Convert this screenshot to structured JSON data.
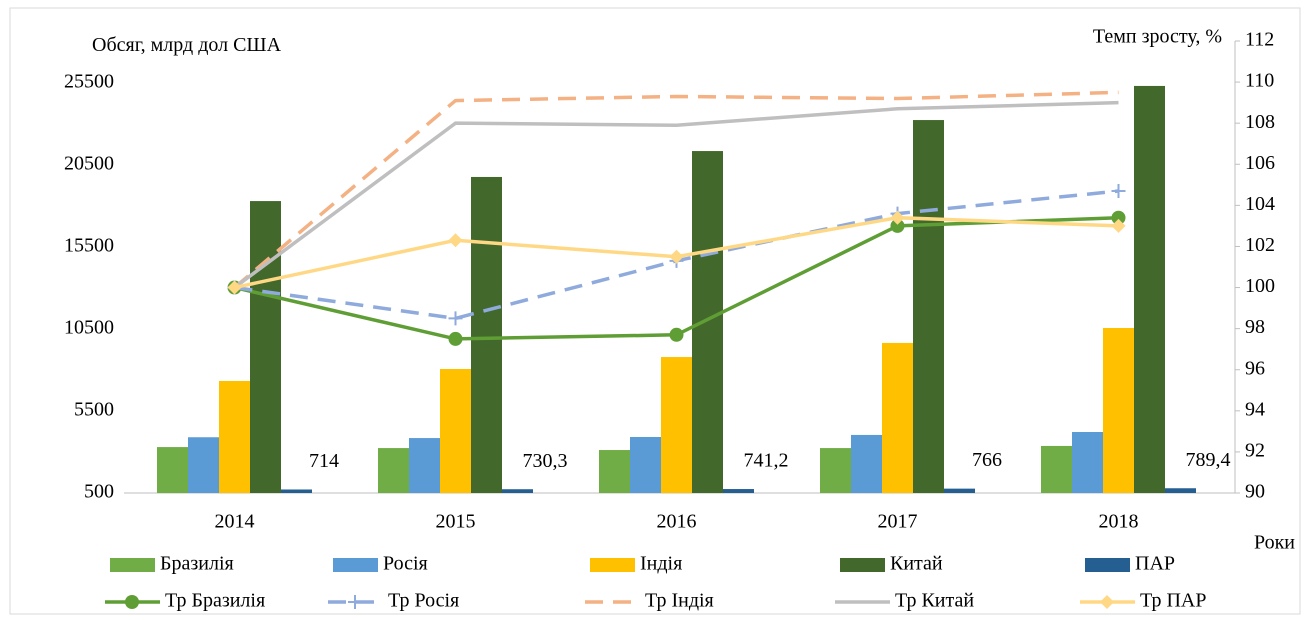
{
  "chart_data": {
    "type": "bar",
    "y_label": "Обсяг, млрд дол США",
    "y2_label": "Темп зросту, %",
    "x_label": "Роки",
    "categories": [
      "2014",
      "2015",
      "2016",
      "2017",
      "2018"
    ],
    "ylim": [
      500,
      28060
    ],
    "yticks": [
      500,
      5500,
      10500,
      15500,
      20500,
      25500
    ],
    "y2lim": [
      90,
      112
    ],
    "y2ticks": [
      90,
      92,
      94,
      96,
      98,
      100,
      102,
      104,
      106,
      108,
      110,
      112
    ],
    "series": [
      {
        "name": "Бразилія",
        "color": "#70ad47",
        "values": [
          3300,
          3240,
          3120,
          3240,
          3370
        ]
      },
      {
        "name": "Росія",
        "color": "#5b9bd5",
        "values": [
          3900,
          3850,
          3915,
          4040,
          4220
        ]
      },
      {
        "name": "Індія",
        "color": "#ffc000",
        "values": [
          7330,
          8060,
          8790,
          9650,
          10560
        ]
      },
      {
        "name": "Китай",
        "color": "#43682b",
        "values": [
          18300,
          19770,
          21350,
          23240,
          25320
        ]
      },
      {
        "name": "ПАР",
        "color": "#255e91",
        "values": [
          714,
          730.3,
          741.2,
          766,
          789.4
        ],
        "value_labels": [
          "714",
          "730,3",
          "741,2",
          "766",
          "789,4"
        ]
      },
      {
        "name": "Тр Бразилія",
        "color": "#5f9e35",
        "axis": "y2",
        "type": "line",
        "marker": "circle",
        "values": [
          100,
          97.5,
          97.7,
          103.0,
          103.4
        ]
      },
      {
        "name": "Тр Росія",
        "color": "#8faadc",
        "axis": "y2",
        "type": "line",
        "marker": "plus",
        "dash": true,
        "values": [
          100,
          98.5,
          101.3,
          103.6,
          104.7
        ]
      },
      {
        "name": "Тр Індія",
        "color": "#f4b183",
        "axis": "y2",
        "type": "line",
        "dash": true,
        "values": [
          100,
          109.1,
          109.3,
          109.2,
          109.5
        ]
      },
      {
        "name": "Тр Китай",
        "color": "#bfbfbf",
        "axis": "y2",
        "type": "line",
        "values": [
          100,
          108.0,
          107.9,
          108.7,
          109.0
        ]
      },
      {
        "name": "Тр ПАР",
        "color": "#ffd885",
        "axis": "y2",
        "type": "line",
        "marker": "diamond",
        "values": [
          100,
          102.3,
          101.5,
          103.4,
          103.0
        ]
      }
    ]
  }
}
